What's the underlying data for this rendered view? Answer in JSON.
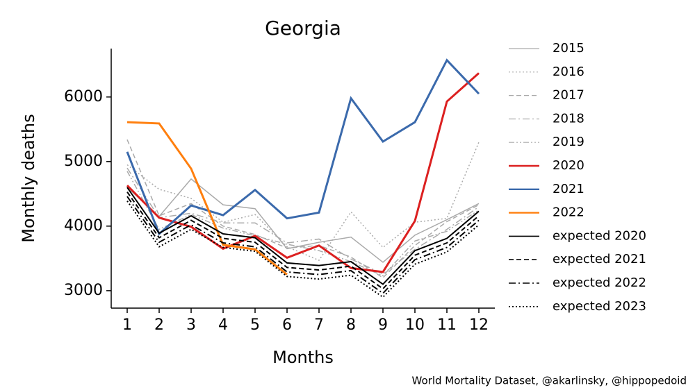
{
  "chart_data": {
    "type": "line",
    "title": "Georgia",
    "x_label": "Months",
    "y_label": "Monthly deaths",
    "annotation": "World Mortality Dataset, @akarlinsky, @hippopedoid",
    "x": [
      1,
      2,
      3,
      4,
      5,
      6,
      7,
      8,
      9,
      10,
      11,
      12
    ],
    "xlim": [
      0.5,
      12.5
    ],
    "xticks": [
      1,
      2,
      3,
      4,
      5,
      6,
      7,
      8,
      9,
      10,
      11,
      12
    ],
    "ylim": [
      2730,
      6750
    ],
    "yticks": [
      3000,
      4000,
      5000,
      6000
    ],
    "legend": "outside right",
    "series": [
      {
        "name": "2015",
        "color": "#aaaaaa",
        "linestyle": "solid",
        "width": 1.5,
        "values": [
          4600,
          4150,
          4730,
          4330,
          4270,
          3650,
          3750,
          3830,
          3440,
          3860,
          4100,
          4350
        ]
      },
      {
        "name": "2016",
        "color": "#aaaaaa",
        "linestyle": "dotted",
        "width": 1.5,
        "values": [
          4950,
          4570,
          4430,
          4060,
          4180,
          3680,
          3470,
          4220,
          3670,
          4060,
          4120,
          5300
        ]
      },
      {
        "name": "2017",
        "color": "#aaaaaa",
        "linestyle": "dashed",
        "width": 1.5,
        "values": [
          5340,
          4160,
          4350,
          4000,
          3870,
          3660,
          3700,
          3520,
          3200,
          3700,
          4070,
          4330
        ]
      },
      {
        "name": "2018",
        "color": "#aaaaaa",
        "linestyle": "dashdot",
        "width": 1.5,
        "values": [
          4900,
          4130,
          4200,
          4050,
          4050,
          3740,
          3800,
          3490,
          3260,
          3640,
          3950,
          4300
        ]
      },
      {
        "name": "2019",
        "color": "#aaaaaa",
        "linestyle": "dashdotdot",
        "width": 1.5,
        "values": [
          4850,
          3950,
          4180,
          3970,
          3850,
          3720,
          3620,
          3450,
          3230,
          3770,
          3920,
          4250
        ]
      },
      {
        "name": "2020",
        "color": "#dc2020",
        "linestyle": "solid",
        "width": 3,
        "values": [
          4630,
          4130,
          3990,
          3650,
          3850,
          3510,
          3700,
          3350,
          3290,
          4080,
          5930,
          6370
        ]
      },
      {
        "name": "2021",
        "color": "#3b6aac",
        "linestyle": "solid",
        "width": 3,
        "values": [
          5150,
          3880,
          4320,
          4170,
          4560,
          4120,
          4210,
          5980,
          5310,
          5610,
          6570,
          6050
        ]
      },
      {
        "name": "2022",
        "color": "#ff7f0e",
        "linestyle": "solid",
        "width": 3,
        "values": [
          5610,
          5590,
          4890,
          3710,
          3640,
          3250,
          null,
          null,
          null,
          null,
          null,
          null
        ]
      },
      {
        "name": "expected 2020",
        "color": "#000000",
        "linestyle": "solid",
        "width": 2,
        "values": [
          4600,
          3890,
          4160,
          3880,
          3820,
          3430,
          3390,
          3450,
          3100,
          3620,
          3810,
          4230
        ]
      },
      {
        "name": "expected 2021",
        "color": "#000000",
        "linestyle": "dashed",
        "width": 2,
        "values": [
          4530,
          3820,
          4090,
          3810,
          3750,
          3360,
          3320,
          3380,
          3030,
          3550,
          3740,
          4160
        ]
      },
      {
        "name": "expected 2022",
        "color": "#000000",
        "linestyle": "dashdot",
        "width": 2,
        "values": [
          4460,
          3750,
          4020,
          3740,
          3680,
          3290,
          3250,
          3310,
          2960,
          3480,
          3670,
          4090
        ]
      },
      {
        "name": "expected 2023",
        "color": "#000000",
        "linestyle": "dotted",
        "width": 2,
        "values": [
          4390,
          3680,
          3950,
          3670,
          3610,
          3220,
          3180,
          3240,
          2900,
          3410,
          3600,
          4020
        ]
      }
    ]
  }
}
